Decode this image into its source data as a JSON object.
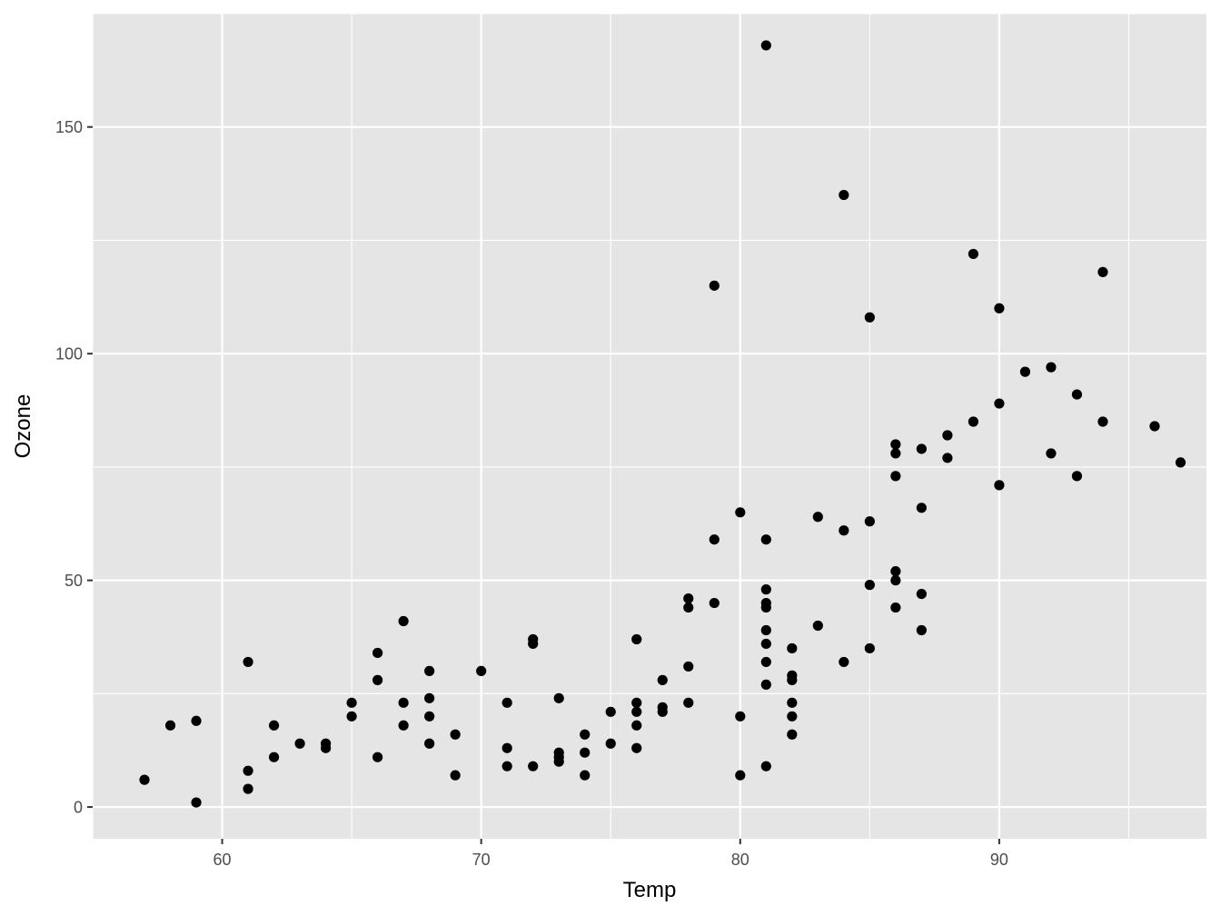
{
  "chart_data": {
    "type": "scatter",
    "title": "",
    "xlabel": "Temp",
    "ylabel": "Ozone",
    "xlim": [
      55,
      98
    ],
    "ylim": [
      -7,
      175
    ],
    "x_ticks": [
      60,
      70,
      80,
      90
    ],
    "y_ticks": [
      0,
      50,
      100,
      150
    ],
    "x_tick_labels": [
      "60",
      "70",
      "80",
      "90"
    ],
    "y_tick_labels": [
      "0",
      "50",
      "100",
      "150"
    ],
    "grid": true,
    "legend": "none",
    "colors": {
      "panel_background": "#e5e5e5",
      "grid_line": "#ffffff",
      "point": "#000000",
      "tick_label": "#4d4d4d",
      "axis_title": "#000000"
    },
    "points": [
      {
        "x": 57,
        "y": 6
      },
      {
        "x": 58,
        "y": 18
      },
      {
        "x": 59,
        "y": 19
      },
      {
        "x": 59,
        "y": 1
      },
      {
        "x": 61,
        "y": 32
      },
      {
        "x": 61,
        "y": 8
      },
      {
        "x": 61,
        "y": 4
      },
      {
        "x": 62,
        "y": 18
      },
      {
        "x": 62,
        "y": 11
      },
      {
        "x": 63,
        "y": 14
      },
      {
        "x": 64,
        "y": 14
      },
      {
        "x": 64,
        "y": 13
      },
      {
        "x": 65,
        "y": 23
      },
      {
        "x": 65,
        "y": 20
      },
      {
        "x": 66,
        "y": 34
      },
      {
        "x": 66,
        "y": 28
      },
      {
        "x": 66,
        "y": 11
      },
      {
        "x": 67,
        "y": 41
      },
      {
        "x": 67,
        "y": 23
      },
      {
        "x": 67,
        "y": 18
      },
      {
        "x": 68,
        "y": 30
      },
      {
        "x": 68,
        "y": 24
      },
      {
        "x": 68,
        "y": 20
      },
      {
        "x": 68,
        "y": 14
      },
      {
        "x": 69,
        "y": 16
      },
      {
        "x": 69,
        "y": 7
      },
      {
        "x": 70,
        "y": 30
      },
      {
        "x": 71,
        "y": 23
      },
      {
        "x": 71,
        "y": 13
      },
      {
        "x": 71,
        "y": 9
      },
      {
        "x": 72,
        "y": 37
      },
      {
        "x": 72,
        "y": 36
      },
      {
        "x": 72,
        "y": 9
      },
      {
        "x": 73,
        "y": 24
      },
      {
        "x": 73,
        "y": 12
      },
      {
        "x": 73,
        "y": 11
      },
      {
        "x": 73,
        "y": 10
      },
      {
        "x": 74,
        "y": 16
      },
      {
        "x": 74,
        "y": 12
      },
      {
        "x": 74,
        "y": 7
      },
      {
        "x": 75,
        "y": 21
      },
      {
        "x": 75,
        "y": 14
      },
      {
        "x": 76,
        "y": 37
      },
      {
        "x": 76,
        "y": 23
      },
      {
        "x": 76,
        "y": 21
      },
      {
        "x": 76,
        "y": 18
      },
      {
        "x": 76,
        "y": 13
      },
      {
        "x": 77,
        "y": 28
      },
      {
        "x": 77,
        "y": 22
      },
      {
        "x": 77,
        "y": 21
      },
      {
        "x": 78,
        "y": 46
      },
      {
        "x": 78,
        "y": 44
      },
      {
        "x": 78,
        "y": 31
      },
      {
        "x": 78,
        "y": 23
      },
      {
        "x": 79,
        "y": 115
      },
      {
        "x": 79,
        "y": 59
      },
      {
        "x": 79,
        "y": 45
      },
      {
        "x": 80,
        "y": 65
      },
      {
        "x": 80,
        "y": 20
      },
      {
        "x": 80,
        "y": 7
      },
      {
        "x": 81,
        "y": 168
      },
      {
        "x": 81,
        "y": 59
      },
      {
        "x": 81,
        "y": 48
      },
      {
        "x": 81,
        "y": 45
      },
      {
        "x": 81,
        "y": 44
      },
      {
        "x": 81,
        "y": 39
      },
      {
        "x": 81,
        "y": 36
      },
      {
        "x": 81,
        "y": 32
      },
      {
        "x": 81,
        "y": 27
      },
      {
        "x": 81,
        "y": 9
      },
      {
        "x": 82,
        "y": 35
      },
      {
        "x": 82,
        "y": 29
      },
      {
        "x": 82,
        "y": 28
      },
      {
        "x": 82,
        "y": 23
      },
      {
        "x": 82,
        "y": 20
      },
      {
        "x": 82,
        "y": 16
      },
      {
        "x": 83,
        "y": 64
      },
      {
        "x": 83,
        "y": 40
      },
      {
        "x": 84,
        "y": 135
      },
      {
        "x": 84,
        "y": 61
      },
      {
        "x": 84,
        "y": 32
      },
      {
        "x": 85,
        "y": 108
      },
      {
        "x": 85,
        "y": 63
      },
      {
        "x": 85,
        "y": 49
      },
      {
        "x": 85,
        "y": 35
      },
      {
        "x": 86,
        "y": 80
      },
      {
        "x": 86,
        "y": 78
      },
      {
        "x": 86,
        "y": 73
      },
      {
        "x": 86,
        "y": 52
      },
      {
        "x": 86,
        "y": 50
      },
      {
        "x": 86,
        "y": 44
      },
      {
        "x": 87,
        "y": 79
      },
      {
        "x": 87,
        "y": 66
      },
      {
        "x": 87,
        "y": 47
      },
      {
        "x": 87,
        "y": 39
      },
      {
        "x": 88,
        "y": 82
      },
      {
        "x": 88,
        "y": 77
      },
      {
        "x": 89,
        "y": 122
      },
      {
        "x": 89,
        "y": 85
      },
      {
        "x": 90,
        "y": 110
      },
      {
        "x": 90,
        "y": 89
      },
      {
        "x": 90,
        "y": 71
      },
      {
        "x": 91,
        "y": 96
      },
      {
        "x": 92,
        "y": 97
      },
      {
        "x": 92,
        "y": 78
      },
      {
        "x": 93,
        "y": 91
      },
      {
        "x": 93,
        "y": 73
      },
      {
        "x": 94,
        "y": 118
      },
      {
        "x": 94,
        "y": 85
      },
      {
        "x": 96,
        "y": 84
      },
      {
        "x": 97,
        "y": 76
      }
    ]
  }
}
